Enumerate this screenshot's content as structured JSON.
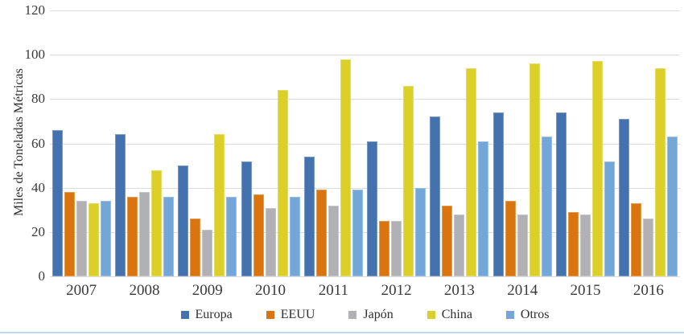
{
  "chart_data": {
    "type": "bar",
    "title": "",
    "xlabel": "",
    "ylabel": "Miles de Toneladas Métricas",
    "ylim": [
      0,
      120
    ],
    "yticks": [
      0,
      20,
      40,
      60,
      80,
      100,
      120
    ],
    "grid": true,
    "legend_position": "bottom",
    "categories": [
      "2007",
      "2008",
      "2009",
      "2010",
      "2011",
      "2012",
      "2013",
      "2014",
      "2015",
      "2016"
    ],
    "series": [
      {
        "name": "Europa",
        "color": "#4472ae",
        "values": [
          66,
          64,
          50,
          52,
          54,
          61,
          72,
          74,
          74,
          71
        ]
      },
      {
        "name": "EEUU",
        "color": "#d9740e",
        "values": [
          38,
          36,
          26,
          37,
          39,
          25,
          32,
          34,
          29,
          33
        ]
      },
      {
        "name": "Japón",
        "color": "#b0b0b5",
        "values": [
          34,
          38,
          21,
          31,
          32,
          25,
          28,
          28,
          28,
          26
        ]
      },
      {
        "name": "China",
        "color": "#dccf27",
        "values": [
          33,
          48,
          64,
          84,
          98,
          86,
          94,
          96,
          97,
          94
        ]
      },
      {
        "name": "Otros",
        "color": "#73a7da",
        "values": [
          34,
          36,
          36,
          36,
          39,
          40,
          61,
          63,
          52,
          63
        ]
      }
    ]
  },
  "colors": {
    "background": "#ffffff",
    "gridline": "#dcdcdc",
    "axis_text": "#3a3a3a",
    "bottom_border": "#bdd7ee"
  }
}
